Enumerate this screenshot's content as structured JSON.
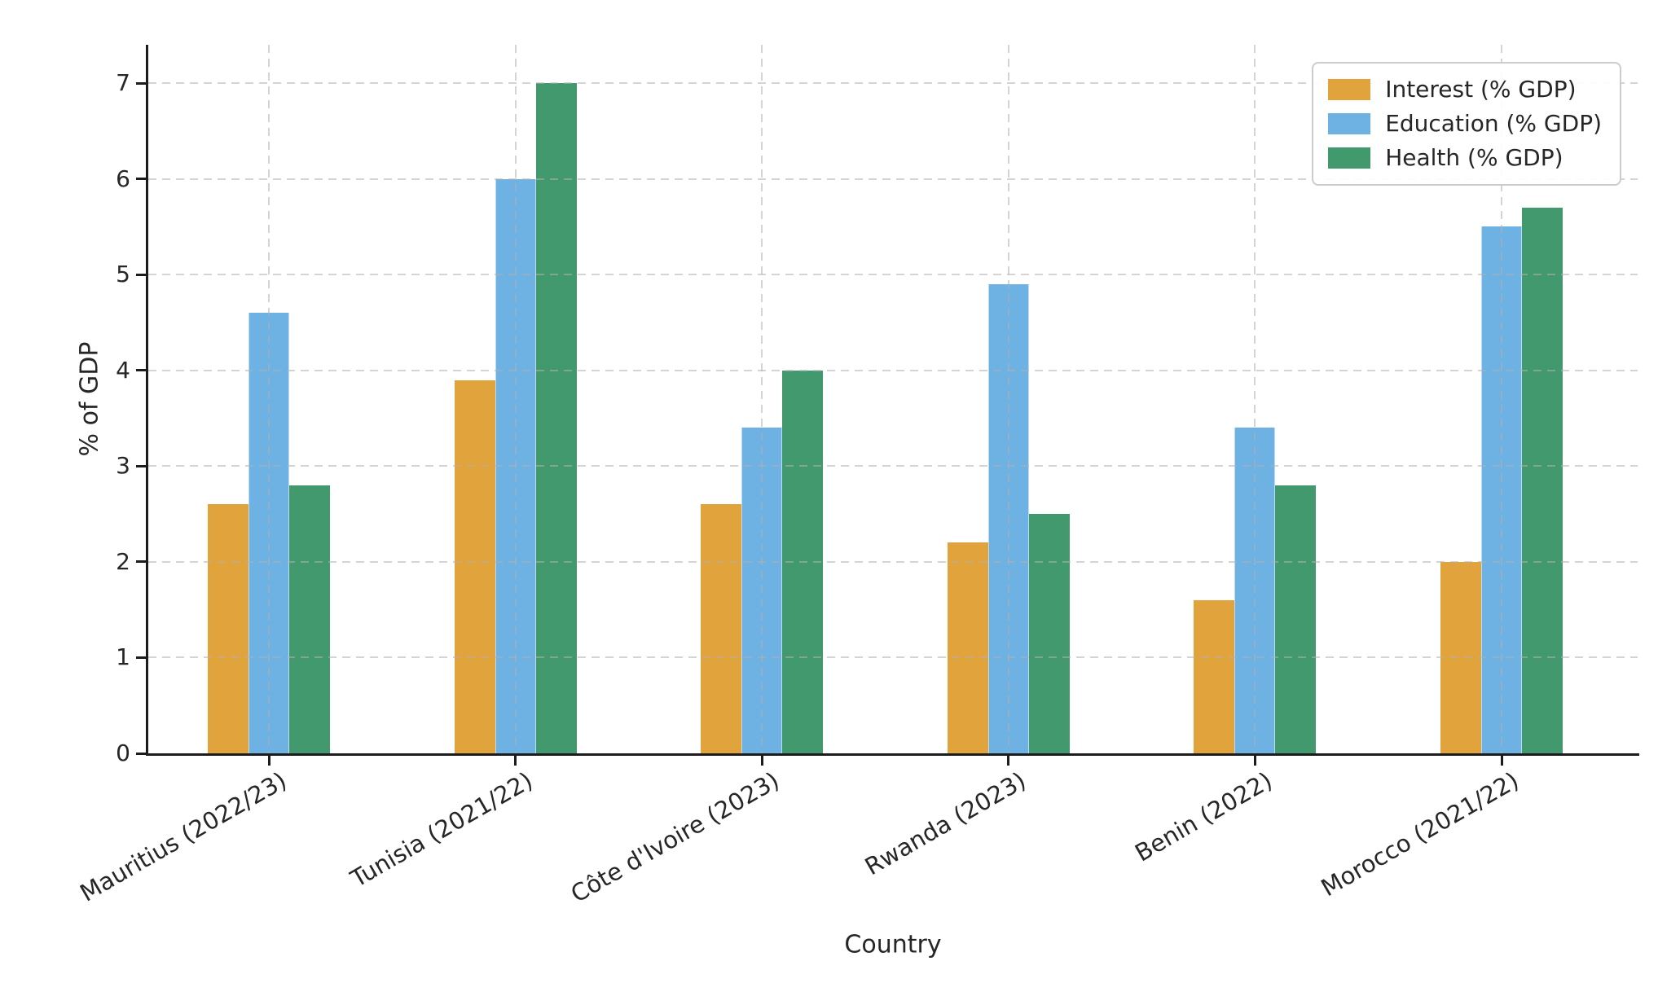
{
  "colors": {
    "background": "#ffffff",
    "text": "#262626",
    "spine": "#1c1c1c",
    "grid": "#b0b0b0",
    "legend_border": "#cccccc"
  },
  "chart_data": {
    "type": "bar",
    "title": "",
    "xlabel": "Country",
    "ylabel": "% of GDP",
    "categories": [
      "Mauritius (2022/23)",
      "Tunisia (2021/22)",
      "Côte d'Ivoire (2023)",
      "Rwanda (2023)",
      "Benin (2022)",
      "Morocco (2021/22)"
    ],
    "series": [
      {
        "name": "Interest (% GDP)",
        "color": "#E1A33B",
        "values": [
          2.6,
          3.9,
          2.6,
          2.2,
          1.6,
          2.0
        ]
      },
      {
        "name": "Education (% GDP)",
        "color": "#6EB2E4",
        "values": [
          4.6,
          6.0,
          3.4,
          4.9,
          3.4,
          5.5
        ]
      },
      {
        "name": "Health (% GDP)",
        "color": "#42996E",
        "values": [
          2.8,
          7.0,
          4.0,
          2.5,
          2.8,
          5.7
        ]
      }
    ],
    "y_ticks": [
      0,
      1,
      2,
      3,
      4,
      5,
      6,
      7
    ],
    "ylim": [
      0,
      7.4
    ],
    "grid": true,
    "grid_style": "dashed",
    "legend_position": "upper right"
  }
}
